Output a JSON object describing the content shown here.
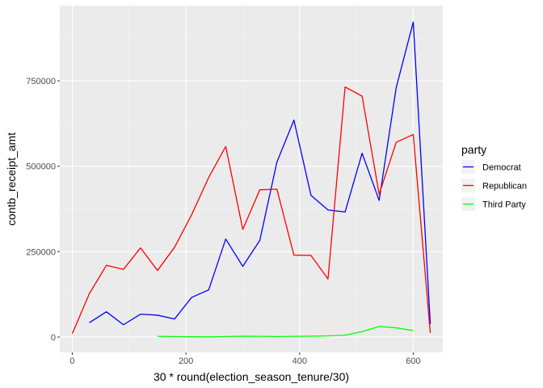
{
  "chart_data": {
    "type": "line",
    "xlabel": "30 * round(election_season_tenure/30)",
    "ylabel": "contb_receipt_amt",
    "xlim": [
      -22,
      652
    ],
    "ylim": [
      -45000,
      970000
    ],
    "x_ticks": [
      0,
      200,
      400,
      600
    ],
    "x_tick_labels": [
      "0",
      "200",
      "400",
      "600"
    ],
    "y_ticks": [
      0,
      250000,
      500000,
      750000
    ],
    "y_tick_labels": [
      "0",
      "250000",
      "500000",
      "750000"
    ],
    "grid": true,
    "legend": {
      "title": "party",
      "placement": "right"
    },
    "series": [
      {
        "name": "Democrat",
        "color": "#0000ff",
        "x": [
          30,
          60,
          90,
          120,
          150,
          180,
          210,
          240,
          270,
          300,
          330,
          360,
          390,
          420,
          450,
          480,
          510,
          540,
          570,
          600,
          630
        ],
        "y": [
          42000,
          74000,
          36000,
          67000,
          64000,
          53000,
          116000,
          138000,
          287000,
          207000,
          283000,
          512000,
          635000,
          415000,
          372000,
          366000,
          538000,
          400000,
          730000,
          922000,
          38000
        ]
      },
      {
        "name": "Republican",
        "color": "#ff0000",
        "x": [
          0,
          30,
          60,
          90,
          120,
          150,
          180,
          210,
          240,
          270,
          300,
          330,
          360,
          390,
          420,
          450,
          480,
          510,
          540,
          570,
          600,
          630
        ],
        "y": [
          10000,
          127000,
          210000,
          198000,
          261000,
          195000,
          263000,
          358000,
          467000,
          558000,
          315000,
          431000,
          433000,
          240000,
          239000,
          170000,
          732000,
          705000,
          418000,
          570000,
          593000,
          12000
        ]
      },
      {
        "name": "Third Party",
        "color": "#00ff00",
        "x": [
          150,
          180,
          210,
          240,
          270,
          300,
          330,
          360,
          390,
          420,
          450,
          480,
          510,
          540,
          570,
          600
        ],
        "y": [
          2000,
          1500,
          1000,
          500,
          1500,
          2500,
          2000,
          1500,
          2000,
          2500,
          3500,
          5500,
          16000,
          31000,
          27000,
          19000
        ]
      }
    ]
  }
}
